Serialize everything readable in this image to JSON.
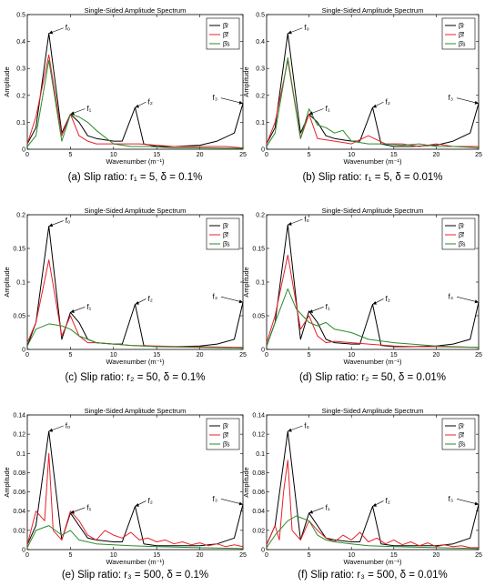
{
  "chart_data": [
    {
      "type": "line",
      "title": "Single-Sided Amplitude Spectrum",
      "xlabel": "Wavenumber (m⁻¹)",
      "ylabel": "Amplitude",
      "caption": "(a) Slip ratio:  r₁ = 5, δ = 0.1%",
      "xlim": [
        0,
        25
      ],
      "ylim": [
        0,
        0.5
      ],
      "xticks": [
        0,
        5,
        10,
        15,
        20,
        25
      ],
      "yticks": [
        0,
        0.1,
        0.2,
        0.3,
        0.4,
        0.5
      ],
      "legend": {
        "position": "top-right",
        "labels": [
          "β̂r",
          "β̂f",
          "β̂s"
        ]
      },
      "annotations": [
        {
          "text": "f₀",
          "x": 2.5,
          "y": 0.43
        },
        {
          "text": "f₁",
          "x": 5,
          "y": 0.13
        },
        {
          "text": "f₂",
          "x": 12.5,
          "y": 0.155
        },
        {
          "text": "f₃",
          "x": 25,
          "y": 0.17
        }
      ],
      "series": [
        {
          "name": "β̂r",
          "color": "#000000",
          "x": [
            0,
            1,
            2.5,
            4,
            5,
            6,
            7,
            8,
            10,
            11,
            12.5,
            13.5,
            15,
            17,
            20,
            22,
            24,
            25
          ],
          "y": [
            0.02,
            0.08,
            0.43,
            0.06,
            0.13,
            0.1,
            0.05,
            0.04,
            0.03,
            0.03,
            0.155,
            0.02,
            0.01,
            0.01,
            0.015,
            0.03,
            0.06,
            0.17
          ]
        },
        {
          "name": "β̂f",
          "color": "#e8202a",
          "x": [
            0,
            1,
            2.5,
            4,
            5,
            6,
            7,
            8,
            10,
            12,
            13,
            15,
            17,
            20,
            23,
            25
          ],
          "y": [
            0.02,
            0.12,
            0.35,
            0.05,
            0.13,
            0.05,
            0.03,
            0.02,
            0.02,
            0.02,
            0.02,
            0.015,
            0.01,
            0.01,
            0.01,
            0.005
          ]
        },
        {
          "name": "β̂s",
          "color": "#2a8a2a",
          "x": [
            0,
            1,
            2.5,
            4,
            5,
            6,
            7,
            8,
            10,
            12,
            14,
            17,
            20,
            25
          ],
          "y": [
            0.01,
            0.05,
            0.33,
            0.03,
            0.13,
            0.12,
            0.1,
            0.07,
            0.02,
            0.01,
            0.01,
            0.005,
            0.005,
            0.003
          ]
        }
      ]
    },
    {
      "type": "line",
      "title": "Single-Sided Amplitude Spectrum",
      "xlabel": "Wavenumber (m⁻¹)",
      "ylabel": "Amplitude",
      "caption": "(b) Slip ratio:  r₁ = 5, δ = 0.01%",
      "xlim": [
        0,
        25
      ],
      "ylim": [
        0,
        0.5
      ],
      "xticks": [
        0,
        5,
        10,
        15,
        20,
        25
      ],
      "yticks": [
        0,
        0.1,
        0.2,
        0.3,
        0.4,
        0.5
      ],
      "legend": {
        "position": "top-right",
        "labels": [
          "β̂r",
          "β̂f",
          "β̂s"
        ]
      },
      "annotations": [
        {
          "text": "f₀",
          "x": 2.5,
          "y": 0.43
        },
        {
          "text": "f₁",
          "x": 5,
          "y": 0.13
        },
        {
          "text": "f₂",
          "x": 12.5,
          "y": 0.155
        },
        {
          "text": "f₃",
          "x": 25,
          "y": 0.17
        }
      ],
      "series": [
        {
          "name": "β̂r",
          "color": "#000000",
          "x": [
            0,
            1,
            2.5,
            4,
            5,
            6,
            7,
            8,
            10,
            11,
            12.5,
            13.5,
            15,
            17,
            20,
            22,
            24,
            25
          ],
          "y": [
            0.02,
            0.08,
            0.43,
            0.06,
            0.13,
            0.1,
            0.05,
            0.04,
            0.03,
            0.03,
            0.155,
            0.02,
            0.01,
            0.01,
            0.015,
            0.03,
            0.06,
            0.17
          ]
        },
        {
          "name": "β̂f",
          "color": "#e8202a",
          "x": [
            0,
            1,
            2.5,
            4,
            5,
            6,
            8,
            10,
            12,
            14,
            16,
            18,
            20,
            22,
            25
          ],
          "y": [
            0.02,
            0.1,
            0.33,
            0.04,
            0.13,
            0.04,
            0.03,
            0.02,
            0.05,
            0.02,
            0.02,
            0.01,
            0.02,
            0.01,
            0.01
          ]
        },
        {
          "name": "β̂s",
          "color": "#2a8a2a",
          "x": [
            0,
            1,
            2.5,
            4,
            5,
            6,
            7,
            8,
            9,
            10,
            12,
            14,
            16,
            18,
            20,
            22,
            25
          ],
          "y": [
            0.01,
            0.06,
            0.34,
            0.04,
            0.15,
            0.09,
            0.08,
            0.06,
            0.07,
            0.03,
            0.02,
            0.02,
            0.015,
            0.02,
            0.01,
            0.01,
            0.005
          ]
        }
      ]
    },
    {
      "type": "line",
      "title": "Single-Sided Amplitude Spectrum",
      "xlabel": "Wavenumber (m⁻¹)",
      "ylabel": "Amplitude",
      "caption": "(c) Slip ratio: r₂ = 50, δ = 0.1%",
      "xlim": [
        0,
        25
      ],
      "ylim": [
        0,
        0.2
      ],
      "xticks": [
        0,
        5,
        10,
        15,
        20,
        25
      ],
      "yticks": [
        0,
        0.05,
        0.1,
        0.15,
        0.2
      ],
      "legend": {
        "position": "top-right",
        "labels": [
          "β̂r",
          "β̂f",
          "β̂s"
        ]
      },
      "annotations": [
        {
          "text": "f₀",
          "x": 2.5,
          "y": 0.183
        },
        {
          "text": "f₁",
          "x": 5,
          "y": 0.055
        },
        {
          "text": "f₂",
          "x": 12.5,
          "y": 0.067
        },
        {
          "text": "f₃",
          "x": 25,
          "y": 0.07
        }
      ],
      "series": [
        {
          "name": "β̂r",
          "color": "#000000",
          "x": [
            0,
            1,
            2.5,
            4,
            5,
            6,
            7,
            8,
            10,
            11,
            12.5,
            13.5,
            15,
            17,
            20,
            22,
            24,
            25
          ],
          "y": [
            0.005,
            0.04,
            0.183,
            0.015,
            0.055,
            0.04,
            0.015,
            0.01,
            0.008,
            0.008,
            0.067,
            0.006,
            0.004,
            0.004,
            0.005,
            0.008,
            0.015,
            0.07
          ]
        },
        {
          "name": "β̂f",
          "color": "#e8202a",
          "x": [
            0,
            1,
            2.5,
            4,
            5,
            6,
            7,
            8,
            10,
            12,
            15,
            18,
            20,
            25
          ],
          "y": [
            0.01,
            0.04,
            0.133,
            0.02,
            0.05,
            0.02,
            0.01,
            0.01,
            0.008,
            0.006,
            0.005,
            0.004,
            0.004,
            0.003
          ]
        },
        {
          "name": "β̂s",
          "color": "#2a8a2a",
          "x": [
            0,
            1,
            2.5,
            4,
            5,
            6,
            7,
            8,
            10,
            12,
            15,
            20,
            25
          ],
          "y": [
            0.005,
            0.03,
            0.038,
            0.035,
            0.03,
            0.02,
            0.015,
            0.01,
            0.008,
            0.006,
            0.004,
            0.003,
            0.002
          ]
        }
      ]
    },
    {
      "type": "line",
      "title": "Single-Sided Amplitude Spectrum",
      "xlabel": "Wavenumber (m⁻¹)",
      "ylabel": "Amplitude",
      "caption": "(d) Slip ratio: r₂ = 50, δ = 0.01%",
      "xlim": [
        0,
        25
      ],
      "ylim": [
        0,
        0.2
      ],
      "xticks": [
        0,
        5,
        10,
        15,
        20,
        25
      ],
      "yticks": [
        0,
        0.05,
        0.1,
        0.15,
        0.2
      ],
      "legend": {
        "position": "top-right",
        "labels": [
          "β̂r",
          "β̂f",
          "β̂s"
        ]
      },
      "annotations": [
        {
          "text": "f₀",
          "x": 2.5,
          "y": 0.185
        },
        {
          "text": "f₁",
          "x": 5,
          "y": 0.055
        },
        {
          "text": "f₂",
          "x": 12.5,
          "y": 0.067
        },
        {
          "text": "f₃",
          "x": 25,
          "y": 0.07
        }
      ],
      "series": [
        {
          "name": "β̂r",
          "color": "#000000",
          "x": [
            0,
            1,
            2.5,
            4,
            5,
            6,
            7,
            8,
            10,
            11,
            12.5,
            13.5,
            15,
            17,
            20,
            22,
            24,
            25
          ],
          "y": [
            0.005,
            0.04,
            0.185,
            0.015,
            0.057,
            0.04,
            0.015,
            0.01,
            0.008,
            0.008,
            0.067,
            0.006,
            0.004,
            0.004,
            0.005,
            0.008,
            0.015,
            0.07
          ]
        },
        {
          "name": "β̂f",
          "color": "#e8202a",
          "x": [
            0,
            1,
            2.5,
            4,
            5,
            6,
            7,
            8,
            10,
            12,
            15,
            18,
            20,
            25
          ],
          "y": [
            0.01,
            0.05,
            0.14,
            0.03,
            0.05,
            0.02,
            0.01,
            0.012,
            0.01,
            0.008,
            0.005,
            0.004,
            0.004,
            0.003
          ]
        },
        {
          "name": "β̂s",
          "color": "#2a8a2a",
          "x": [
            0,
            1,
            2.5,
            3.5,
            5,
            6,
            7,
            8,
            10,
            12,
            15,
            20,
            25
          ],
          "y": [
            0.005,
            0.04,
            0.09,
            0.06,
            0.04,
            0.035,
            0.04,
            0.03,
            0.025,
            0.015,
            0.01,
            0.005,
            0.003
          ]
        }
      ]
    },
    {
      "type": "line",
      "title": "Single-Sided Amplitude Spectrum",
      "xlabel": "Wavenumber (m⁻¹)",
      "ylabel": "Amplitude",
      "caption": "(e) Slip ratio: r₃ = 500, δ = 0.1%",
      "xlim": [
        0,
        25
      ],
      "ylim": [
        0,
        0.14
      ],
      "xticks": [
        0,
        5,
        10,
        15,
        20,
        25
      ],
      "yticks": [
        0,
        0.02,
        0.04,
        0.06,
        0.08,
        0.1,
        0.12,
        0.14
      ],
      "legend": {
        "position": "top-right",
        "labels": [
          "β̂r",
          "β̂f",
          "β̂s"
        ]
      },
      "annotations": [
        {
          "text": "f₀",
          "x": 2.5,
          "y": 0.123
        },
        {
          "text": "f₁",
          "x": 5,
          "y": 0.038
        },
        {
          "text": "f₂",
          "x": 12.5,
          "y": 0.045
        },
        {
          "text": "f₃",
          "x": 25,
          "y": 0.047
        }
      ],
      "series": [
        {
          "name": "β̂r",
          "color": "#000000",
          "x": [
            0,
            1,
            2.5,
            4,
            5,
            6,
            7,
            8,
            10,
            11,
            12.5,
            13.5,
            15,
            17,
            20,
            22,
            24,
            25
          ],
          "y": [
            0.005,
            0.025,
            0.123,
            0.01,
            0.038,
            0.025,
            0.012,
            0.01,
            0.008,
            0.008,
            0.045,
            0.006,
            0.004,
            0.004,
            0.004,
            0.006,
            0.012,
            0.047
          ]
        },
        {
          "name": "β̂f",
          "color": "#e8202a",
          "x": [
            0,
            1,
            2,
            2.5,
            3,
            4,
            5,
            6,
            7,
            8,
            9,
            10,
            11,
            12,
            13,
            14,
            15,
            16,
            17,
            18,
            19,
            20,
            21,
            22,
            23,
            24,
            25
          ],
          "y": [
            0.005,
            0.04,
            0.03,
            0.1,
            0.02,
            0.01,
            0.04,
            0.03,
            0.015,
            0.01,
            0.02,
            0.015,
            0.012,
            0.018,
            0.01,
            0.012,
            0.008,
            0.01,
            0.006,
            0.008,
            0.005,
            0.007,
            0.004,
            0.006,
            0.003,
            0.005,
            0.003
          ]
        },
        {
          "name": "β̂s",
          "color": "#2a8a2a",
          "x": [
            0,
            1,
            2.5,
            4,
            5,
            6,
            7,
            8,
            10,
            12,
            15,
            20,
            25
          ],
          "y": [
            0.002,
            0.02,
            0.025,
            0.015,
            0.02,
            0.01,
            0.008,
            0.006,
            0.005,
            0.004,
            0.003,
            0.002,
            0.001
          ]
        }
      ]
    },
    {
      "type": "line",
      "title": "Single-Sided Amplitude Spectrum",
      "xlabel": "Wavenumber (m⁻¹)",
      "ylabel": "Amplitude",
      "caption": "(f) Slip ratio: r₃ = 500, δ = 0.01%",
      "xlim": [
        0,
        25
      ],
      "ylim": [
        0,
        0.14
      ],
      "xticks": [
        0,
        5,
        10,
        15,
        20,
        25
      ],
      "yticks": [
        0,
        0.02,
        0.04,
        0.06,
        0.08,
        0.1,
        0.12,
        0.14
      ],
      "legend": {
        "position": "top-right",
        "labels": [
          "β̂r",
          "β̂f",
          "β̂s"
        ]
      },
      "annotations": [
        {
          "text": "f₀",
          "x": 2.5,
          "y": 0.123
        },
        {
          "text": "f₁",
          "x": 5,
          "y": 0.038
        },
        {
          "text": "f₂",
          "x": 12.5,
          "y": 0.045
        },
        {
          "text": "f₃",
          "x": 25,
          "y": 0.047
        }
      ],
      "series": [
        {
          "name": "β̂r",
          "color": "#000000",
          "x": [
            0,
            1,
            2.5,
            4,
            5,
            6,
            7,
            8,
            10,
            11,
            12.5,
            13.5,
            15,
            17,
            20,
            22,
            24,
            25
          ],
          "y": [
            0.005,
            0.025,
            0.123,
            0.01,
            0.038,
            0.025,
            0.012,
            0.01,
            0.008,
            0.008,
            0.045,
            0.006,
            0.004,
            0.004,
            0.004,
            0.006,
            0.012,
            0.047
          ]
        },
        {
          "name": "β̂f",
          "color": "#e8202a",
          "x": [
            0,
            1,
            1.5,
            2,
            2.5,
            3,
            4,
            5,
            6,
            7,
            8,
            9,
            10,
            11,
            12,
            13,
            14,
            15,
            16,
            17,
            18,
            19,
            20,
            21,
            22,
            23,
            24,
            25
          ],
          "y": [
            0.005,
            0.025,
            0.01,
            0.06,
            0.093,
            0.02,
            0.01,
            0.03,
            0.02,
            0.012,
            0.008,
            0.015,
            0.01,
            0.018,
            0.008,
            0.012,
            0.006,
            0.01,
            0.005,
            0.008,
            0.004,
            0.007,
            0.003,
            0.005,
            0.003,
            0.004,
            0.002,
            0.002
          ]
        },
        {
          "name": "β̂s",
          "color": "#2a8a2a",
          "x": [
            0,
            1,
            2.5,
            3.5,
            5,
            6,
            7,
            8,
            10,
            12,
            15,
            20,
            25
          ],
          "y": [
            0.002,
            0.015,
            0.03,
            0.035,
            0.03,
            0.015,
            0.01,
            0.008,
            0.006,
            0.004,
            0.003,
            0.002,
            0.001
          ]
        }
      ]
    }
  ]
}
